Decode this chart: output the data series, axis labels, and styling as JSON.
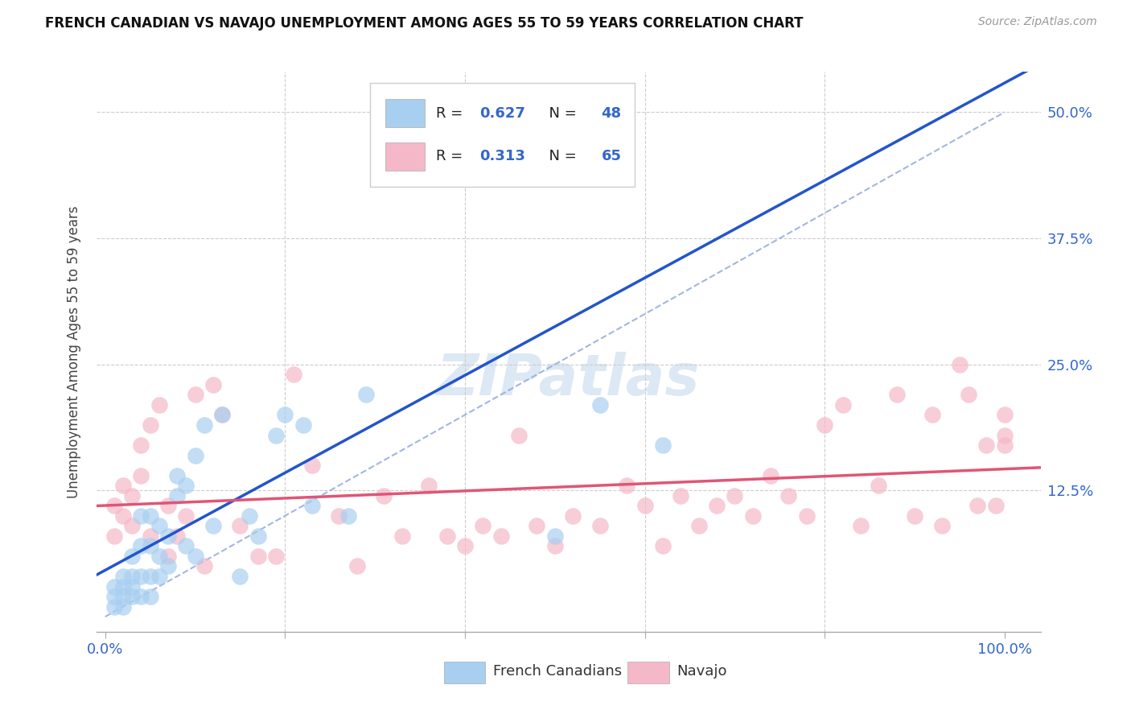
{
  "title": "FRENCH CANADIAN VS NAVAJO UNEMPLOYMENT AMONG AGES 55 TO 59 YEARS CORRELATION CHART",
  "source": "Source: ZipAtlas.com",
  "ylabel_label": "Unemployment Among Ages 55 to 59 years",
  "legend_blue_label": "French Canadians",
  "legend_pink_label": "Navajo",
  "blue_R": 0.627,
  "blue_N": 48,
  "pink_R": 0.313,
  "pink_N": 65,
  "blue_color": "#a8cff0",
  "pink_color": "#f5b8c8",
  "blue_line_color": "#2255cc",
  "pink_line_color": "#e05575",
  "diag_line_color": "#99aedd",
  "background_color": "#ffffff",
  "blue_x": [
    0.01,
    0.01,
    0.01,
    0.02,
    0.02,
    0.02,
    0.02,
    0.03,
    0.03,
    0.03,
    0.03,
    0.04,
    0.04,
    0.04,
    0.04,
    0.05,
    0.05,
    0.05,
    0.05,
    0.06,
    0.06,
    0.06,
    0.07,
    0.07,
    0.08,
    0.08,
    0.09,
    0.09,
    0.1,
    0.1,
    0.11,
    0.12,
    0.13,
    0.15,
    0.16,
    0.17,
    0.19,
    0.2,
    0.22,
    0.23,
    0.27,
    0.29,
    0.35,
    0.37,
    0.38,
    0.5,
    0.55,
    0.62
  ],
  "blue_y": [
    0.01,
    0.02,
    0.03,
    0.01,
    0.02,
    0.03,
    0.04,
    0.02,
    0.03,
    0.04,
    0.06,
    0.02,
    0.04,
    0.07,
    0.1,
    0.02,
    0.04,
    0.07,
    0.1,
    0.04,
    0.06,
    0.09,
    0.05,
    0.08,
    0.12,
    0.14,
    0.07,
    0.13,
    0.06,
    0.16,
    0.19,
    0.09,
    0.2,
    0.04,
    0.1,
    0.08,
    0.18,
    0.2,
    0.19,
    0.11,
    0.1,
    0.22,
    0.47,
    0.46,
    0.47,
    0.08,
    0.21,
    0.17
  ],
  "pink_x": [
    0.01,
    0.01,
    0.02,
    0.02,
    0.03,
    0.03,
    0.04,
    0.04,
    0.05,
    0.05,
    0.06,
    0.07,
    0.07,
    0.08,
    0.09,
    0.1,
    0.11,
    0.12,
    0.13,
    0.15,
    0.17,
    0.19,
    0.21,
    0.23,
    0.26,
    0.28,
    0.31,
    0.33,
    0.36,
    0.38,
    0.4,
    0.42,
    0.44,
    0.46,
    0.48,
    0.5,
    0.52,
    0.55,
    0.58,
    0.6,
    0.62,
    0.64,
    0.66,
    0.68,
    0.7,
    0.72,
    0.74,
    0.76,
    0.78,
    0.8,
    0.82,
    0.84,
    0.86,
    0.88,
    0.9,
    0.92,
    0.93,
    0.95,
    0.96,
    0.97,
    0.98,
    0.99,
    1.0,
    1.0,
    1.0
  ],
  "pink_y": [
    0.08,
    0.11,
    0.1,
    0.13,
    0.09,
    0.12,
    0.14,
    0.17,
    0.08,
    0.19,
    0.21,
    0.06,
    0.11,
    0.08,
    0.1,
    0.22,
    0.05,
    0.23,
    0.2,
    0.09,
    0.06,
    0.06,
    0.24,
    0.15,
    0.1,
    0.05,
    0.12,
    0.08,
    0.13,
    0.08,
    0.07,
    0.09,
    0.08,
    0.18,
    0.09,
    0.07,
    0.1,
    0.09,
    0.13,
    0.11,
    0.07,
    0.12,
    0.09,
    0.11,
    0.12,
    0.1,
    0.14,
    0.12,
    0.1,
    0.19,
    0.21,
    0.09,
    0.13,
    0.22,
    0.1,
    0.2,
    0.09,
    0.25,
    0.22,
    0.11,
    0.17,
    0.11,
    0.18,
    0.2,
    0.17
  ],
  "xlim": [
    -0.01,
    1.04
  ],
  "ylim": [
    -0.015,
    0.54
  ],
  "yticks": [
    0.125,
    0.25,
    0.375,
    0.5
  ],
  "yticklabels": [
    "12.5%",
    "25.0%",
    "37.5%",
    "50.0%"
  ],
  "xtick_show": [
    0.0,
    1.0
  ],
  "xtick_labels": [
    "0.0%",
    "100.0%"
  ],
  "grid_yticks": [
    0.125,
    0.25,
    0.375,
    0.5
  ],
  "grid_xticks": [
    0.2,
    0.4,
    0.6,
    0.8
  ],
  "title_fontsize": 12,
  "source_fontsize": 10,
  "tick_fontsize": 13,
  "ylabel_fontsize": 12
}
